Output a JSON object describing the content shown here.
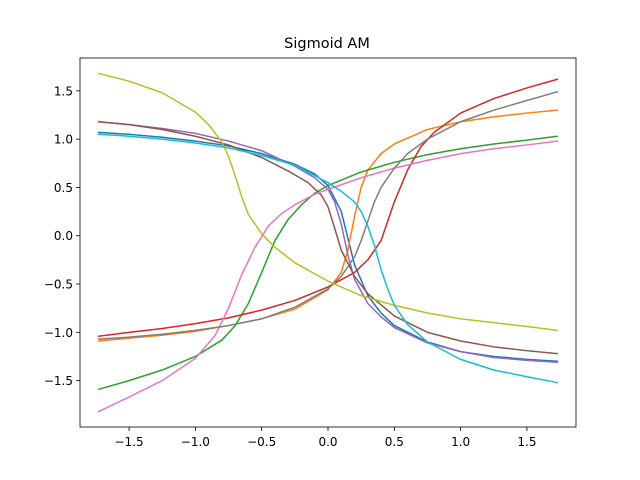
{
  "chart_data": {
    "type": "line",
    "title": "Sigmoid AM",
    "xlabel": "",
    "ylabel": "",
    "xlim": [
      -1.87,
      1.87
    ],
    "ylim": [
      -1.98,
      1.84
    ],
    "grid": false,
    "legend": "none",
    "xticks": [
      -1.5,
      -1.0,
      -0.5,
      0.0,
      0.5,
      1.0,
      1.5
    ],
    "xtick_labels": [
      "−1.5",
      "−1.0",
      "−0.5",
      "0.0",
      "0.5",
      "1.0",
      "1.5"
    ],
    "yticks": [
      -1.5,
      -1.0,
      -0.5,
      0.0,
      0.5,
      1.0,
      1.5
    ],
    "ytick_labels": [
      "−1.5",
      "−1.0",
      "−0.5",
      "0.0",
      "0.5",
      "1.0",
      "1.5"
    ],
    "series": [
      {
        "color": "#1f77b4",
        "x": [
          -1.73,
          -1.5,
          -1.25,
          -1.0,
          -0.75,
          -0.5,
          -0.25,
          -0.1,
          0.0,
          0.1,
          0.2,
          0.3,
          0.4,
          0.5,
          0.75,
          1.0,
          1.25,
          1.5,
          1.73
        ],
        "y": [
          1.07,
          1.05,
          1.02,
          0.98,
          0.93,
          0.85,
          0.74,
          0.64,
          0.52,
          0.25,
          -0.3,
          -0.62,
          -0.8,
          -0.93,
          -1.1,
          -1.2,
          -1.25,
          -1.28,
          -1.3
        ]
      },
      {
        "color": "#ff7f0e",
        "x": [
          -1.73,
          -1.5,
          -1.25,
          -1.0,
          -0.75,
          -0.5,
          -0.25,
          0.0,
          0.1,
          0.15,
          0.2,
          0.25,
          0.3,
          0.4,
          0.5,
          0.75,
          1.0,
          1.25,
          1.5,
          1.73
        ],
        "y": [
          -1.09,
          -1.06,
          -1.03,
          -0.99,
          -0.93,
          -0.86,
          -0.76,
          -0.56,
          -0.38,
          -0.15,
          0.2,
          0.5,
          0.68,
          0.85,
          0.95,
          1.1,
          1.18,
          1.23,
          1.27,
          1.3
        ]
      },
      {
        "color": "#2ca02c",
        "x": [
          -1.73,
          -1.5,
          -1.25,
          -1.0,
          -0.8,
          -0.7,
          -0.6,
          -0.5,
          -0.4,
          -0.3,
          -0.2,
          -0.1,
          0.0,
          0.25,
          0.5,
          0.75,
          1.0,
          1.25,
          1.5,
          1.73
        ],
        "y": [
          -1.59,
          -1.5,
          -1.39,
          -1.25,
          -1.08,
          -0.93,
          -0.7,
          -0.38,
          -0.05,
          0.17,
          0.32,
          0.44,
          0.52,
          0.66,
          0.76,
          0.84,
          0.9,
          0.95,
          0.99,
          1.03
        ]
      },
      {
        "color": "#d62728",
        "x": [
          -1.73,
          -1.5,
          -1.25,
          -1.0,
          -0.75,
          -0.5,
          -0.25,
          0.0,
          0.2,
          0.3,
          0.4,
          0.45,
          0.5,
          0.6,
          0.7,
          0.8,
          1.0,
          1.25,
          1.5,
          1.73
        ],
        "y": [
          -1.04,
          -1.0,
          -0.96,
          -0.91,
          -0.85,
          -0.77,
          -0.67,
          -0.53,
          -0.38,
          -0.25,
          -0.05,
          0.15,
          0.35,
          0.68,
          0.92,
          1.07,
          1.27,
          1.42,
          1.53,
          1.62
        ]
      },
      {
        "color": "#9467bd",
        "x": [
          -1.73,
          -1.5,
          -1.25,
          -1.0,
          -0.75,
          -0.5,
          -0.25,
          -0.1,
          0.0,
          0.05,
          0.1,
          0.15,
          0.2,
          0.3,
          0.4,
          0.5,
          0.75,
          1.0,
          1.25,
          1.5,
          1.73
        ],
        "y": [
          1.18,
          1.15,
          1.11,
          1.06,
          0.98,
          0.88,
          0.72,
          0.6,
          0.48,
          0.35,
          0.12,
          -0.2,
          -0.45,
          -0.7,
          -0.84,
          -0.95,
          -1.11,
          -1.2,
          -1.26,
          -1.29,
          -1.31
        ]
      },
      {
        "color": "#8c564b",
        "x": [
          -1.73,
          -1.5,
          -1.25,
          -1.0,
          -0.75,
          -0.5,
          -0.3,
          -0.15,
          -0.05,
          0.0,
          0.05,
          0.1,
          0.2,
          0.3,
          0.5,
          0.75,
          1.0,
          1.25,
          1.5,
          1.73
        ],
        "y": [
          1.18,
          1.15,
          1.1,
          1.03,
          0.94,
          0.81,
          0.67,
          0.55,
          0.42,
          0.3,
          0.08,
          -0.15,
          -0.42,
          -0.6,
          -0.83,
          -1.0,
          -1.09,
          -1.15,
          -1.19,
          -1.22
        ]
      },
      {
        "color": "#e377c2",
        "x": [
          -1.73,
          -1.5,
          -1.25,
          -1.0,
          -0.85,
          -0.75,
          -0.65,
          -0.55,
          -0.45,
          -0.35,
          -0.25,
          -0.1,
          0.0,
          0.25,
          0.5,
          0.75,
          1.0,
          1.25,
          1.5,
          1.73
        ],
        "y": [
          -1.82,
          -1.67,
          -1.5,
          -1.27,
          -1.03,
          -0.75,
          -0.4,
          -0.12,
          0.1,
          0.23,
          0.32,
          0.43,
          0.48,
          0.6,
          0.7,
          0.78,
          0.85,
          0.9,
          0.94,
          0.98
        ]
      },
      {
        "color": "#7f7f7f",
        "x": [
          -1.73,
          -1.5,
          -1.25,
          -1.0,
          -0.75,
          -0.5,
          -0.25,
          0.0,
          0.1,
          0.2,
          0.25,
          0.3,
          0.35,
          0.4,
          0.5,
          0.6,
          0.75,
          1.0,
          1.25,
          1.5,
          1.73
        ],
        "y": [
          -1.07,
          -1.05,
          -1.02,
          -0.98,
          -0.93,
          -0.86,
          -0.74,
          -0.55,
          -0.42,
          -0.22,
          -0.05,
          0.15,
          0.35,
          0.5,
          0.7,
          0.85,
          1.0,
          1.18,
          1.3,
          1.4,
          1.49
        ]
      },
      {
        "color": "#bcbd22",
        "x": [
          -1.73,
          -1.5,
          -1.25,
          -1.0,
          -0.9,
          -0.8,
          -0.75,
          -0.7,
          -0.65,
          -0.6,
          -0.5,
          -0.4,
          -0.25,
          0.0,
          0.25,
          0.5,
          0.75,
          1.0,
          1.25,
          1.5,
          1.73
        ],
        "y": [
          1.68,
          1.6,
          1.48,
          1.28,
          1.15,
          0.97,
          0.82,
          0.62,
          0.4,
          0.22,
          0.02,
          -0.12,
          -0.28,
          -0.47,
          -0.62,
          -0.72,
          -0.8,
          -0.86,
          -0.9,
          -0.94,
          -0.98
        ]
      },
      {
        "color": "#17becf",
        "x": [
          -1.73,
          -1.5,
          -1.25,
          -1.0,
          -0.75,
          -0.5,
          -0.25,
          0.0,
          0.1,
          0.2,
          0.25,
          0.3,
          0.35,
          0.4,
          0.45,
          0.5,
          0.6,
          0.75,
          1.0,
          1.25,
          1.5,
          1.73
        ],
        "y": [
          1.05,
          1.03,
          1.0,
          0.96,
          0.91,
          0.83,
          0.73,
          0.55,
          0.46,
          0.35,
          0.25,
          0.1,
          -0.1,
          -0.35,
          -0.55,
          -0.72,
          -0.92,
          -1.1,
          -1.28,
          -1.39,
          -1.46,
          -1.52
        ]
      }
    ]
  }
}
